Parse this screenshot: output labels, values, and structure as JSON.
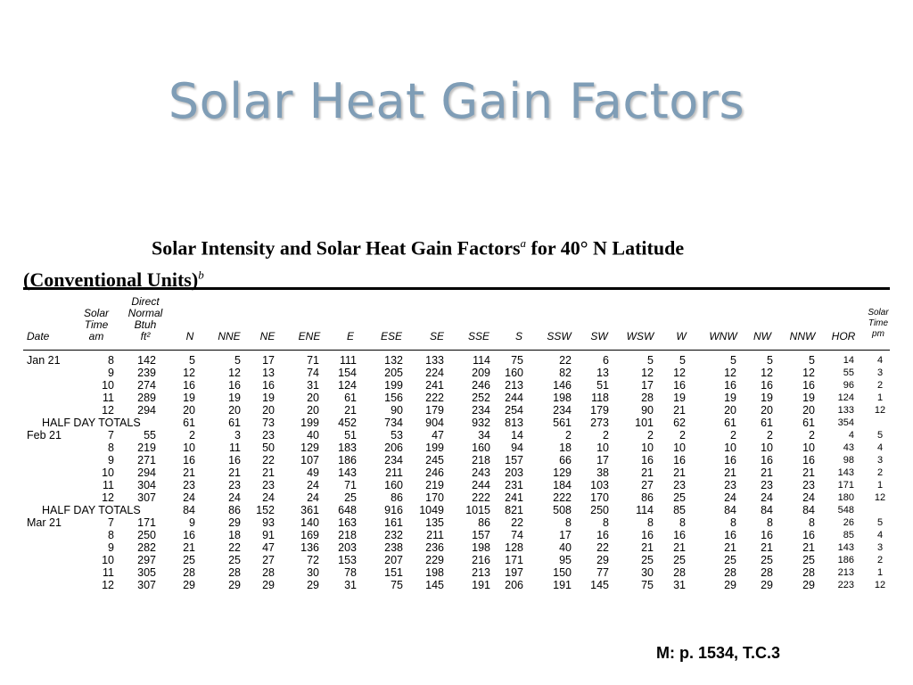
{
  "slide": {
    "title": "Solar Heat Gain Factors",
    "footer_ref": "M: p. 1534, T.C.3",
    "title_color": "#7f9db6"
  },
  "table": {
    "title_line1": "Solar Intensity and Solar Heat Gain Factors",
    "title_line1_sup": "a",
    "title_line1_tail": " for 40° N Latitude",
    "title_line2": "(Conventional Units)",
    "title_line2_sup": "b",
    "headers": {
      "date": "Date",
      "solar_time_am": [
        "Solar",
        "Time",
        "am"
      ],
      "direct_normal": [
        "Direct",
        "Normal",
        "Btuh",
        "ft²"
      ],
      "orientations": [
        "N",
        "NNE",
        "NE",
        "ENE",
        "E",
        "ESE",
        "SE",
        "SSE",
        "S",
        "SSW",
        "SW",
        "WSW",
        "W",
        "WNW",
        "NW",
        "NNW",
        "HOR"
      ],
      "solar_time_pm": [
        "Solar",
        "Time",
        "pm"
      ]
    },
    "rows": [
      {
        "label": "Jan 21",
        "am": "8",
        "dn": "142",
        "v": [
          "5",
          "5",
          "17",
          "71",
          "111",
          "132",
          "133",
          "114",
          "75",
          "22",
          "6",
          "5",
          "5",
          "5",
          "5",
          "5",
          "14"
        ],
        "pm": "4"
      },
      {
        "label": "",
        "am": "9",
        "dn": "239",
        "v": [
          "12",
          "12",
          "13",
          "74",
          "154",
          "205",
          "224",
          "209",
          "160",
          "82",
          "13",
          "12",
          "12",
          "12",
          "12",
          "12",
          "55"
        ],
        "pm": "3"
      },
      {
        "label": "",
        "am": "10",
        "dn": "274",
        "v": [
          "16",
          "16",
          "16",
          "31",
          "124",
          "199",
          "241",
          "246",
          "213",
          "146",
          "51",
          "17",
          "16",
          "16",
          "16",
          "16",
          "96"
        ],
        "pm": "2"
      },
      {
        "label": "",
        "am": "11",
        "dn": "289",
        "v": [
          "19",
          "19",
          "19",
          "20",
          "61",
          "156",
          "222",
          "252",
          "244",
          "198",
          "118",
          "28",
          "19",
          "19",
          "19",
          "19",
          "124"
        ],
        "pm": "1"
      },
      {
        "label": "",
        "am": "12",
        "dn": "294",
        "v": [
          "20",
          "20",
          "20",
          "20",
          "21",
          "90",
          "179",
          "234",
          "254",
          "234",
          "179",
          "90",
          "21",
          "20",
          "20",
          "20",
          "133"
        ],
        "pm": "12"
      },
      {
        "label": "HALF DAY TOTALS",
        "totals": true,
        "am": "",
        "dn": "",
        "v": [
          "61",
          "61",
          "73",
          "199",
          "452",
          "734",
          "904",
          "932",
          "813",
          "561",
          "273",
          "101",
          "62",
          "61",
          "61",
          "61",
          "354"
        ],
        "pm": ""
      },
      {
        "label": "Feb 21",
        "am": "7",
        "dn": "55",
        "v": [
          "2",
          "3",
          "23",
          "40",
          "51",
          "53",
          "47",
          "34",
          "14",
          "2",
          "2",
          "2",
          "2",
          "2",
          "2",
          "2",
          "4"
        ],
        "pm": "5"
      },
      {
        "label": "",
        "am": "8",
        "dn": "219",
        "v": [
          "10",
          "11",
          "50",
          "129",
          "183",
          "206",
          "199",
          "160",
          "94",
          "18",
          "10",
          "10",
          "10",
          "10",
          "10",
          "10",
          "43"
        ],
        "pm": "4"
      },
      {
        "label": "",
        "am": "9",
        "dn": "271",
        "v": [
          "16",
          "16",
          "22",
          "107",
          "186",
          "234",
          "245",
          "218",
          "157",
          "66",
          "17",
          "16",
          "16",
          "16",
          "16",
          "16",
          "98"
        ],
        "pm": "3"
      },
      {
        "label": "",
        "am": "10",
        "dn": "294",
        "v": [
          "21",
          "21",
          "21",
          "49",
          "143",
          "211",
          "246",
          "243",
          "203",
          "129",
          "38",
          "21",
          "21",
          "21",
          "21",
          "21",
          "143"
        ],
        "pm": "2"
      },
      {
        "label": "",
        "am": "11",
        "dn": "304",
        "v": [
          "23",
          "23",
          "23",
          "24",
          "71",
          "160",
          "219",
          "244",
          "231",
          "184",
          "103",
          "27",
          "23",
          "23",
          "23",
          "23",
          "171"
        ],
        "pm": "1"
      },
      {
        "label": "",
        "am": "12",
        "dn": "307",
        "v": [
          "24",
          "24",
          "24",
          "24",
          "25",
          "86",
          "170",
          "222",
          "241",
          "222",
          "170",
          "86",
          "25",
          "24",
          "24",
          "24",
          "180"
        ],
        "pm": "12"
      },
      {
        "label": "HALF DAY TOTALS",
        "totals": true,
        "am": "",
        "dn": "",
        "v": [
          "84",
          "86",
          "152",
          "361",
          "648",
          "916",
          "1049",
          "1015",
          "821",
          "508",
          "250",
          "114",
          "85",
          "84",
          "84",
          "84",
          "548"
        ],
        "pm": ""
      },
      {
        "label": "Mar 21",
        "am": "7",
        "dn": "171",
        "v": [
          "9",
          "29",
          "93",
          "140",
          "163",
          "161",
          "135",
          "86",
          "22",
          "8",
          "8",
          "8",
          "8",
          "8",
          "8",
          "8",
          "26"
        ],
        "pm": "5"
      },
      {
        "label": "",
        "am": "8",
        "dn": "250",
        "v": [
          "16",
          "18",
          "91",
          "169",
          "218",
          "232",
          "211",
          "157",
          "74",
          "17",
          "16",
          "16",
          "16",
          "16",
          "16",
          "16",
          "85"
        ],
        "pm": "4"
      },
      {
        "label": "",
        "am": "9",
        "dn": "282",
        "v": [
          "21",
          "22",
          "47",
          "136",
          "203",
          "238",
          "236",
          "198",
          "128",
          "40",
          "22",
          "21",
          "21",
          "21",
          "21",
          "21",
          "143"
        ],
        "pm": "3"
      },
      {
        "label": "",
        "am": "10",
        "dn": "297",
        "v": [
          "25",
          "25",
          "27",
          "72",
          "153",
          "207",
          "229",
          "216",
          "171",
          "95",
          "29",
          "25",
          "25",
          "25",
          "25",
          "25",
          "186"
        ],
        "pm": "2"
      },
      {
        "label": "",
        "am": "11",
        "dn": "305",
        "v": [
          "28",
          "28",
          "28",
          "30",
          "78",
          "151",
          "198",
          "213",
          "197",
          "150",
          "77",
          "30",
          "28",
          "28",
          "28",
          "28",
          "213"
        ],
        "pm": "1"
      },
      {
        "label": "",
        "am": "12",
        "dn": "307",
        "v": [
          "29",
          "29",
          "29",
          "29",
          "31",
          "75",
          "145",
          "191",
          "206",
          "191",
          "145",
          "75",
          "31",
          "29",
          "29",
          "29",
          "223"
        ],
        "pm": "12"
      }
    ]
  }
}
